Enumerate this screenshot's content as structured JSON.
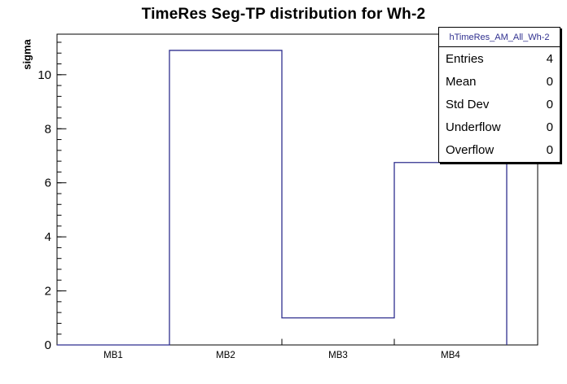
{
  "chart_data": {
    "type": "bar",
    "subtype": "step-histogram",
    "title": "TimeRes Seg-TP distribution for Wh-2",
    "xlabel": "",
    "ylabel": "sigma",
    "categories": [
      "MB1",
      "MB2",
      "MB3",
      "MB4"
    ],
    "values": [
      0,
      10.9,
      1.0,
      6.75
    ],
    "ylim": [
      0,
      11.5
    ],
    "y_major_tick_step": 2,
    "y_minor_tick_step": 0.4,
    "y_tick_labels": [
      "0",
      "2",
      "4",
      "6",
      "8",
      "10"
    ],
    "grid": false,
    "legend": "none",
    "line_color": "#2f2f8f",
    "frame_color": "#000000",
    "background_color": "#ffffff"
  },
  "stats_box": {
    "title": "hTimeRes_AM_All_Wh-2",
    "rows": [
      {
        "label": "Entries",
        "value": "4"
      },
      {
        "label": "Mean",
        "value": "0"
      },
      {
        "label": "Std Dev",
        "value": "0"
      },
      {
        "label": "Underflow",
        "value": "0"
      },
      {
        "label": "Overflow",
        "value": "0"
      }
    ]
  }
}
